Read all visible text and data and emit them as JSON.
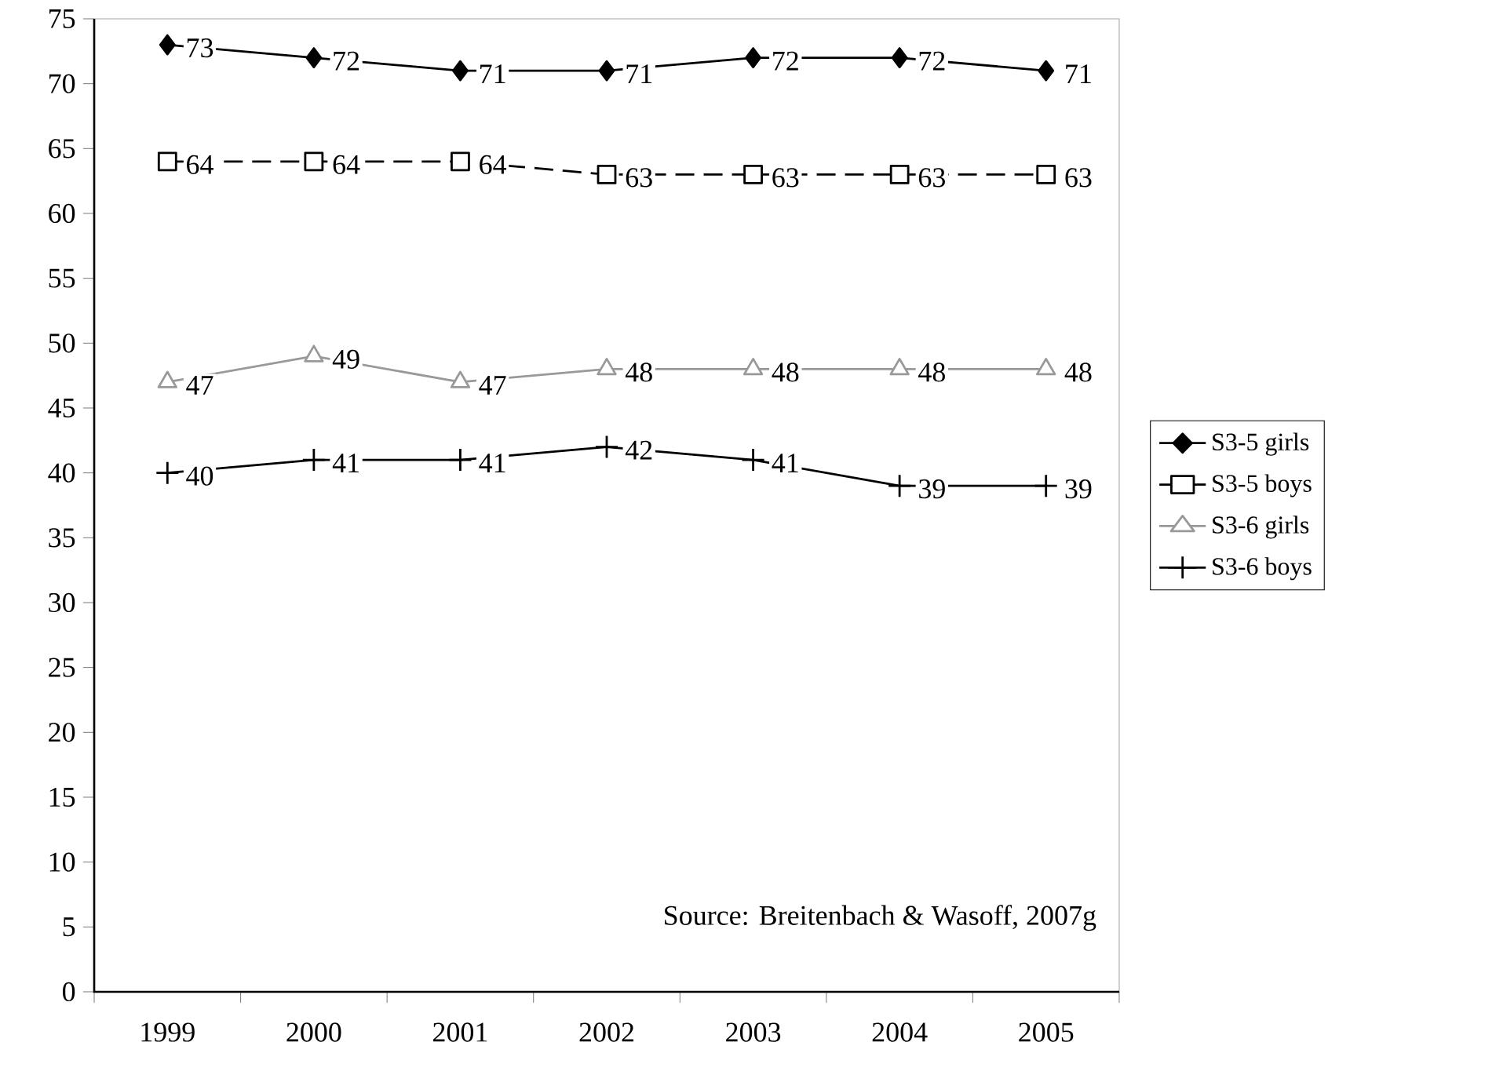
{
  "chart_data": {
    "type": "line",
    "categories": [
      "1999",
      "2000",
      "2001",
      "2002",
      "2003",
      "2004",
      "2005"
    ],
    "series": [
      {
        "name": "S3-5 girls",
        "color": "#000000",
        "marker": "diamond",
        "line_style": "solid",
        "values": [
          73,
          72,
          71,
          71,
          72,
          72,
          71
        ]
      },
      {
        "name": "S3-5 boys",
        "color": "#000000",
        "marker": "square",
        "line_style": "dashed",
        "values": [
          64,
          64,
          64,
          63,
          63,
          63,
          63
        ]
      },
      {
        "name": "S3-6 girls",
        "color": "#999999",
        "marker": "triangle",
        "line_style": "solid",
        "values": [
          47,
          49,
          47,
          48,
          48,
          48,
          48
        ]
      },
      {
        "name": "S3-6 boys",
        "color": "#000000",
        "marker": "cross",
        "line_style": "solid",
        "values": [
          40,
          41,
          41,
          42,
          41,
          39,
          39
        ]
      }
    ],
    "ylim": [
      0,
      75
    ],
    "yticks": [
      0,
      5,
      10,
      15,
      20,
      25,
      30,
      35,
      40,
      45,
      50,
      55,
      60,
      65,
      70,
      75
    ],
    "grid": false,
    "legend": "right",
    "data_labels": true,
    "annotations": [
      "Source: Breitenbach & Wasoff, 2007g"
    ]
  }
}
